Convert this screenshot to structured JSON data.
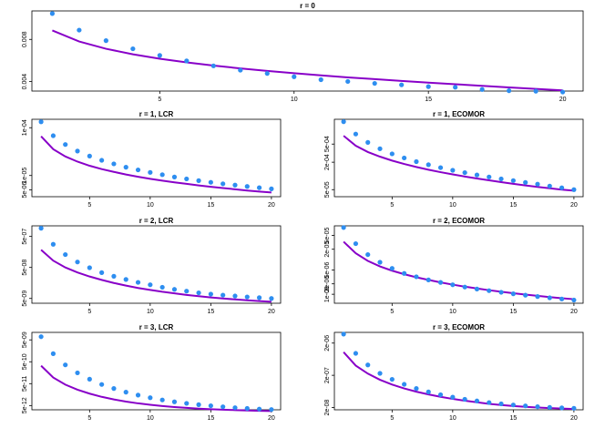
{
  "colors": {
    "points": "#2e8ef0",
    "curve": "#8800c8",
    "frame": "#000000"
  },
  "chart_data": [
    {
      "type": "scatter",
      "title": "r = 0",
      "log_y": false,
      "x": [
        1,
        2,
        3,
        4,
        5,
        6,
        7,
        8,
        9,
        10,
        11,
        12,
        13,
        14,
        15,
        16,
        17,
        18,
        19,
        20
      ],
      "ylim": [
        0.0031,
        0.0107
      ],
      "x_ticks": [
        5,
        10,
        15,
        20
      ],
      "y_ticks": [
        {
          "value": 0.004,
          "label": "0.004"
        },
        {
          "value": 0.008,
          "label": "0.008"
        }
      ],
      "series": [
        {
          "kind": "points",
          "values": [
            0.01045,
            0.00888,
            0.00788,
            0.00711,
            0.00648,
            0.00596,
            0.00549,
            0.00508,
            0.00477,
            0.00446,
            0.00418,
            0.00401,
            0.00383,
            0.00369,
            0.00352,
            0.00346,
            0.00325,
            0.00313,
            0.00309,
            0.00301
          ]
        },
        {
          "kind": "curve",
          "values": [
            0.00885,
            0.0078,
            0.00711,
            0.00659,
            0.00617,
            0.00582,
            0.00552,
            0.00525,
            0.00501,
            0.00479,
            0.00459,
            0.0044,
            0.00423,
            0.00406,
            0.0039,
            0.00375,
            0.0036,
            0.00345,
            0.00331,
            0.00316
          ]
        }
      ]
    },
    {
      "type": "scatter",
      "title": "r = 1, LCR",
      "log_y": true,
      "x": [
        1,
        2,
        3,
        4,
        5,
        6,
        7,
        8,
        9,
        10,
        11,
        12,
        13,
        14,
        15,
        16,
        17,
        18,
        19,
        20
      ],
      "ylim": [
        3.6e-06,
        0.00015
      ],
      "x_ticks": [
        5,
        10,
        15,
        20
      ],
      "y_ticks": [
        {
          "value": 0.0001,
          "label": "1e-04"
        },
        {
          "value": 1e-05,
          "label": "1e-05"
        },
        {
          "value": 5e-06,
          "label": "5e-06"
        }
      ],
      "series": [
        {
          "kind": "points",
          "values": [
            0.000133,
            6.8e-05,
            4.45e-05,
            3.25e-05,
            2.55e-05,
            2.08e-05,
            1.75e-05,
            1.49e-05,
            1.31e-05,
            1.16e-05,
            1.04e-05,
            9.3e-06,
            8.5e-06,
            7.8e-06,
            7.2e-06,
            6.7e-06,
            6.3e-06,
            5.9e-06,
            5.55e-06,
            5.25e-06
          ]
        },
        {
          "kind": "curve",
          "values": [
            6.6e-05,
            3.55e-05,
            2.5e-05,
            1.95e-05,
            1.6e-05,
            1.36e-05,
            1.19e-05,
            1.05e-05,
            9.4e-06,
            8.5e-06,
            7.8e-06,
            7.2e-06,
            6.7e-06,
            6.2e-06,
            5.8e-06,
            5.45e-06,
            5.15e-06,
            4.85e-06,
            4.6e-06,
            4.4e-06
          ]
        }
      ]
    },
    {
      "type": "scatter",
      "title": "r = 1, ECOMOR",
      "log_y": true,
      "x": [
        1,
        2,
        3,
        4,
        5,
        6,
        7,
        8,
        9,
        10,
        11,
        12,
        13,
        14,
        15,
        16,
        17,
        18,
        19,
        20
      ],
      "ylim": [
        3.5e-05,
        0.00175
      ],
      "x_ticks": [
        5,
        10,
        15,
        20
      ],
      "y_ticks": [
        {
          "value": 0.0005,
          "label": "5e-04"
        },
        {
          "value": 0.0002,
          "label": "2e-04"
        },
        {
          "value": 5e-05,
          "label": "5e-05"
        }
      ],
      "series": [
        {
          "kind": "points",
          "values": [
            0.00155,
            0.00083,
            0.000545,
            0.000395,
            0.000305,
            0.000248,
            0.000206,
            0.000176,
            0.000152,
            0.000133,
            0.000118,
            0.000105,
            9.5e-05,
            8.6e-05,
            7.9e-05,
            7.2e-05,
            6.6e-05,
            6e-05,
            5.5e-05,
            5e-05
          ]
        },
        {
          "kind": "curve",
          "values": [
            0.00076,
            0.00046,
            0.000335,
            0.000265,
            0.000217,
            0.000183,
            0.000157,
            0.000137,
            0.000121,
            0.000108,
            9.7e-05,
            8.8e-05,
            8e-05,
            7.3e-05,
            6.7e-05,
            6.2e-05,
            5.75e-05,
            5.35e-05,
            5e-05,
            4.75e-05
          ]
        }
      ]
    },
    {
      "type": "scatter",
      "title": "r = 2, LCR",
      "log_y": true,
      "x": [
        1,
        2,
        3,
        4,
        5,
        6,
        7,
        8,
        9,
        10,
        11,
        12,
        13,
        14,
        15,
        16,
        17,
        18,
        19,
        20
      ],
      "ylim": [
        3.5e-09,
        1.1e-06
      ],
      "x_ticks": [
        5,
        10,
        15,
        20
      ],
      "y_ticks": [
        {
          "value": 5e-07,
          "label": "5e-07"
        },
        {
          "value": 5e-08,
          "label": "5e-08"
        },
        {
          "value": 5e-09,
          "label": "5e-09"
        }
      ],
      "series": [
        {
          "kind": "points",
          "values": [
            9.2e-07,
            2.8e-07,
            1.3e-07,
            7.5e-08,
            4.9e-08,
            3.4e-08,
            2.6e-08,
            2.05e-08,
            1.65e-08,
            1.38e-08,
            1.15e-08,
            9.8e-09,
            8.6e-09,
            7.6e-09,
            6.9e-09,
            6.4e-09,
            6e-09,
            5.6e-09,
            5.3e-09,
            5e-09
          ]
        },
        {
          "kind": "curve",
          "values": [
            1.85e-07,
            8.3e-08,
            5e-08,
            3.45e-08,
            2.55e-08,
            1.98e-08,
            1.58e-08,
            1.3e-08,
            1.09e-08,
            9.4e-09,
            8.2e-09,
            7.3e-09,
            6.5e-09,
            5.9e-09,
            5.4e-09,
            5e-09,
            4.65e-09,
            4.35e-09,
            4.1e-09,
            3.9e-09
          ]
        }
      ]
    },
    {
      "type": "scatter",
      "title": "r = 2, ECOMOR",
      "log_y": true,
      "x": [
        1,
        2,
        3,
        4,
        5,
        6,
        7,
        8,
        9,
        10,
        11,
        12,
        13,
        14,
        15,
        16,
        17,
        18,
        19,
        20
      ],
      "ylim": [
        5.5e-07,
        9.5e-05
      ],
      "x_ticks": [
        5,
        10,
        15,
        20
      ],
      "y_ticks": [
        {
          "value": 5e-05,
          "label": "5e-05"
        },
        {
          "value": 2e-05,
          "label": "2e-05"
        },
        {
          "value": 5e-06,
          "label": "5e-06"
        },
        {
          "value": 2e-06,
          "label": "2e-06"
        },
        {
          "value": 1e-06,
          "label": "1e-06"
        }
      ],
      "series": [
        {
          "kind": "points",
          "values": [
            8.5e-05,
            2.9e-05,
            1.4e-05,
            8.4e-06,
            5.6e-06,
            4e-06,
            3.2e-06,
            2.6e-06,
            2.2e-06,
            1.88e-06,
            1.62e-06,
            1.42e-06,
            1.27e-06,
            1.14e-06,
            1.03e-06,
            9.4e-07,
            8.6e-07,
            7.9e-07,
            7.3e-07,
            6.8e-07
          ]
        },
        {
          "kind": "curve",
          "values": [
            3.3e-05,
            1.53e-05,
            9.2e-06,
            6.4e-06,
            4.8e-06,
            3.8e-06,
            3.1e-06,
            2.6e-06,
            2.2e-06,
            1.9e-06,
            1.66e-06,
            1.47e-06,
            1.31e-06,
            1.18e-06,
            1.07e-06,
            9.8e-07,
            9e-07,
            8.3e-07,
            7.7e-07,
            7.2e-07
          ]
        }
      ]
    },
    {
      "type": "scatter",
      "title": "r = 3, LCR",
      "log_y": true,
      "x": [
        1,
        2,
        3,
        4,
        5,
        6,
        7,
        8,
        9,
        10,
        11,
        12,
        13,
        14,
        15,
        16,
        17,
        18,
        19,
        20
      ],
      "ylim": [
        3.2e-12,
        1.1e-08
      ],
      "x_ticks": [
        5,
        10,
        15,
        20
      ],
      "y_ticks": [
        {
          "value": 5e-09,
          "label": "5e-09"
        },
        {
          "value": 5e-10,
          "label": "5e-10"
        },
        {
          "value": 5e-11,
          "label": "5e-11"
        },
        {
          "value": 5e-12,
          "label": "5e-12"
        }
      ],
      "series": [
        {
          "kind": "points",
          "values": [
            7e-09,
            1.17e-09,
            3.6e-10,
            1.56e-10,
            8e-11,
            4.6e-11,
            3e-11,
            2.05e-11,
            1.5e-11,
            1.14e-11,
            9e-12,
            7.4e-12,
            6.3e-12,
            5.5e-12,
            4.9e-12,
            4.4e-12,
            4e-12,
            3.7e-12,
            3.45e-12,
            3.3e-12
          ]
        },
        {
          "kind": "curve",
          "values": [
            3.3e-10,
            9.5e-11,
            4.5e-11,
            2.65e-11,
            1.75e-11,
            1.25e-11,
            9.5e-12,
            7.6e-12,
            6.3e-12,
            5.4e-12,
            4.75e-12,
            4.25e-12,
            3.9e-12,
            3.6e-12,
            3.4e-12,
            3.25e-12,
            3.1e-12,
            2.98e-12,
            2.88e-12,
            2.8e-12
          ]
        }
      ]
    },
    {
      "type": "scatter",
      "title": "r = 3, ECOMOR",
      "log_y": true,
      "x": [
        1,
        2,
        3,
        4,
        5,
        6,
        7,
        8,
        9,
        10,
        11,
        12,
        13,
        14,
        15,
        16,
        17,
        18,
        19,
        20
      ],
      "ylim": [
        1.7e-08,
        4.3e-06
      ],
      "x_ticks": [
        5,
        10,
        15,
        20
      ],
      "y_ticks": [
        {
          "value": 2e-06,
          "label": "2e-06"
        },
        {
          "value": 2e-07,
          "label": "2e-07"
        },
        {
          "value": 2e-08,
          "label": "2e-08"
        }
      ],
      "series": [
        {
          "kind": "points",
          "values": [
            3.8e-06,
            9.6e-07,
            4.2e-07,
            2.3e-07,
            1.5e-07,
            1.05e-07,
            7.8e-08,
            6.1e-08,
            5e-08,
            4.2e-08,
            3.6e-08,
            3.2e-08,
            2.85e-08,
            2.6e-08,
            2.4e-08,
            2.25e-08,
            2.12e-08,
            2.02e-08,
            1.95e-08,
            1.9e-08
          ]
        },
        {
          "kind": "curve",
          "values": [
            1.05e-06,
            4e-07,
            2.25e-07,
            1.45e-07,
            1.03e-07,
            7.8e-08,
            6.2e-08,
            5.1e-08,
            4.3e-08,
            3.7e-08,
            3.25e-08,
            2.9e-08,
            2.6e-08,
            2.4e-08,
            2.23e-08,
            2.1e-08,
            2e-08,
            1.92e-08,
            1.86e-08,
            1.8e-08
          ]
        }
      ]
    }
  ]
}
